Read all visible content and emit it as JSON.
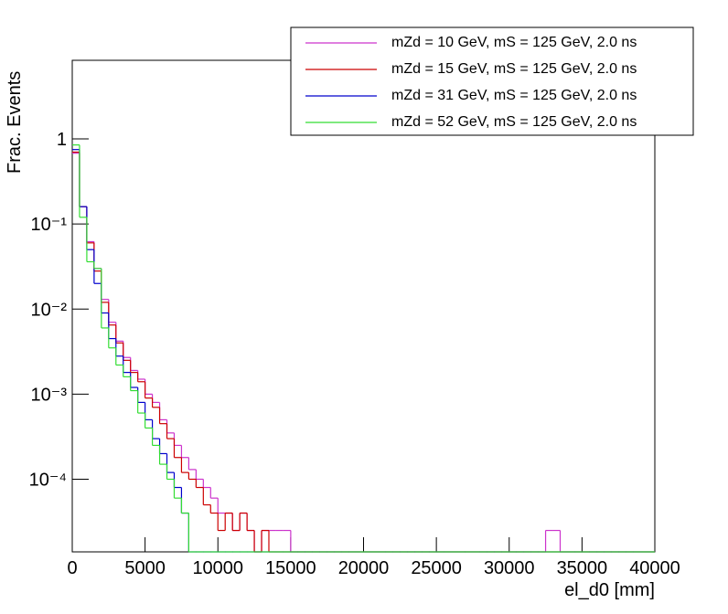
{
  "chart_data": {
    "type": "histogram",
    "x_label": "el_d0 [mm]",
    "y_label": "Frac. Events",
    "log_y": true,
    "xlim": [
      0,
      40000
    ],
    "xticks": [
      0,
      5000,
      10000,
      15000,
      20000,
      25000,
      30000,
      35000,
      40000
    ],
    "ylim": [
      1.4e-05,
      8.4
    ],
    "yticks": [
      {
        "value": 0.0001,
        "label": "10⁻⁴"
      },
      {
        "value": 0.001,
        "label": "10⁻³"
      },
      {
        "value": 0.01,
        "label": "10⁻²"
      },
      {
        "value": 0.1,
        "label": "10⁻¹"
      },
      1
    ],
    "legend": "top-right",
    "bins": [
      0,
      500,
      1000,
      1500,
      2000,
      2500,
      3000,
      3500,
      4000,
      4500,
      5000,
      5500,
      6000,
      6500,
      7000,
      7500,
      8000,
      8500,
      9000,
      9500,
      10000,
      10500,
      11000,
      11500,
      12000,
      12500,
      13000,
      13500,
      14000,
      14500,
      15000,
      15500,
      16000,
      16500,
      17000,
      17500,
      18000,
      18500,
      19000,
      19500,
      20000,
      20500,
      21000,
      21500,
      22000,
      22500,
      23000,
      23500,
      24000,
      24500,
      25000,
      25500,
      26000,
      26500,
      27000,
      27500,
      28000,
      28500,
      29000,
      29500,
      30000,
      30500,
      31000,
      31500,
      32000,
      32500,
      33000,
      33500,
      34000,
      34500,
      35000,
      35500,
      36000,
      36500,
      37000,
      37500,
      38000,
      38500,
      39000,
      39500,
      40000
    ],
    "series": [
      {
        "name": "mZd = 10 GeV, mS = 125 GeV, 2.0 ns",
        "color": "#cc33cc",
        "values": [
          0.68,
          0.16,
          0.062,
          0.03,
          0.013,
          0.007,
          0.0042,
          0.0027,
          0.0019,
          0.0015,
          0.001,
          0.0008,
          0.0005,
          0.00035,
          0.00025,
          0.00018,
          0.00013,
          0.0001,
          8e-05,
          6e-05,
          4e-05,
          4e-05,
          2.5e-05,
          4e-05,
          2.5e-05,
          0,
          2.5e-05,
          2.5e-05,
          2.5e-05,
          2.5e-05,
          0,
          0,
          0,
          0,
          0,
          0,
          0,
          0,
          0,
          0,
          0,
          0,
          0,
          0,
          0,
          0,
          0,
          0,
          0,
          0,
          0,
          0,
          0,
          0,
          0,
          0,
          0,
          0,
          0,
          0,
          0,
          0,
          0,
          0,
          0,
          2.5e-05,
          2.5e-05,
          0,
          0,
          0,
          0,
          0,
          0,
          0,
          0,
          0,
          0,
          0,
          0,
          0
        ]
      },
      {
        "name": "mZd = 15 GeV, mS = 125 GeV, 2.0 ns",
        "color": "#cc0000",
        "values": [
          0.7,
          0.16,
          0.06,
          0.028,
          0.012,
          0.0065,
          0.004,
          0.0025,
          0.0018,
          0.0014,
          0.0009,
          0.0007,
          0.00045,
          0.0003,
          0.00018,
          0.00012,
          0.0001,
          8e-05,
          5e-05,
          4e-05,
          2.5e-05,
          4e-05,
          2.5e-05,
          4e-05,
          2.5e-05,
          0,
          2.5e-05,
          0,
          0,
          0,
          0,
          0,
          0,
          0,
          0,
          0,
          0,
          0,
          0,
          0,
          0,
          0,
          0,
          0,
          0,
          0,
          0,
          0,
          0,
          0,
          0,
          0,
          0,
          0,
          0,
          0,
          0,
          0,
          0,
          0,
          0,
          0,
          0,
          0,
          0,
          0,
          0,
          0,
          0,
          0,
          0,
          0,
          0,
          0,
          0,
          0,
          0,
          0,
          0,
          0
        ]
      },
      {
        "name": "mZd = 31 GeV, mS = 125 GeV, 2.0 ns",
        "color": "#0000cc",
        "values": [
          0.75,
          0.16,
          0.05,
          0.02,
          0.009,
          0.0045,
          0.0028,
          0.0018,
          0.0012,
          0.0008,
          0.0005,
          0.0003,
          0.0002,
          0.00012,
          8e-05,
          4e-05,
          0,
          0,
          0,
          0,
          0,
          0,
          0,
          0,
          0,
          0,
          0,
          0,
          0,
          0,
          0,
          0,
          0,
          0,
          0,
          0,
          0,
          0,
          0,
          0,
          0,
          0,
          0,
          0,
          0,
          0,
          0,
          0,
          0,
          0,
          0,
          0,
          0,
          0,
          0,
          0,
          0,
          0,
          0,
          0,
          0,
          0,
          0,
          0,
          0,
          0,
          0,
          0,
          0,
          0,
          0,
          0,
          0,
          0,
          0,
          0,
          0,
          0,
          0,
          0
        ]
      },
      {
        "name": "mZd = 52 GeV, mS = 125 GeV, 2.0 ns",
        "color": "#33dd33",
        "values": [
          0.85,
          0.12,
          0.036,
          0.03,
          0.006,
          0.0035,
          0.0022,
          0.0016,
          0.0011,
          0.0006,
          0.0004,
          0.00025,
          0.00015,
          0.0001,
          6e-05,
          4e-05,
          0,
          0,
          0,
          0,
          0,
          0,
          0,
          0,
          0,
          0,
          0,
          0,
          0,
          0,
          0,
          0,
          0,
          0,
          0,
          0,
          0,
          0,
          0,
          0,
          0,
          0,
          0,
          0,
          0,
          0,
          0,
          0,
          0,
          0,
          0,
          0,
          0,
          0,
          0,
          0,
          0,
          0,
          0,
          0,
          0,
          0,
          0,
          0,
          0,
          0,
          0,
          0,
          0,
          0,
          0,
          0,
          0,
          0,
          0,
          0,
          0,
          0,
          0,
          0
        ]
      }
    ]
  }
}
